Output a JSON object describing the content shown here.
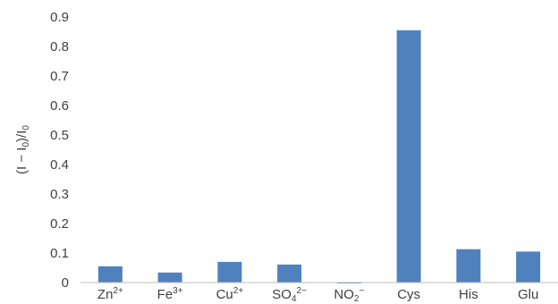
{
  "chart_data": {
    "type": "bar",
    "categories": [
      {
        "base": "Zn",
        "sup": "2+",
        "sub": ""
      },
      {
        "base": "Fe",
        "sup": "3+",
        "sub": ""
      },
      {
        "base": "Cu",
        "sup": "2+",
        "sub": ""
      },
      {
        "base": "SO",
        "sub": "4",
        "sup": "2−"
      },
      {
        "base": "NO",
        "sub": "2",
        "sup": "−"
      },
      {
        "base": "Cys",
        "sup": "",
        "sub": ""
      },
      {
        "base": "His",
        "sup": "",
        "sub": ""
      },
      {
        "base": "Glu",
        "sup": "",
        "sub": ""
      }
    ],
    "values": [
      0.055,
      0.034,
      0.07,
      0.061,
      -0.003,
      0.855,
      0.113,
      0.105
    ],
    "ylabel": {
      "pre": "(I − I",
      "sub1": "0",
      "mid": ")/I",
      "sub2": "0"
    },
    "ylim": [
      0,
      0.9
    ],
    "yticks": [
      "0",
      "0.1",
      "0.2",
      "0.3",
      "0.4",
      "0.5",
      "0.6",
      "0.7",
      "0.8",
      "0.9"
    ],
    "grid": false,
    "colors": {
      "bar": "#4f81bd",
      "axis": "#bfbfbf",
      "text": "#404040"
    }
  }
}
